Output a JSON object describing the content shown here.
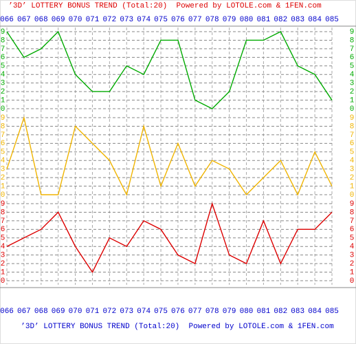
{
  "chart_data": {
    "type": "line",
    "title": "’3D’ LOTTERY BONUS TREND (Total:20)  Powered by LOTOLE.com & 1FEN.com",
    "categories": [
      "066",
      "067",
      "068",
      "069",
      "070",
      "071",
      "072",
      "073",
      "074",
      "075",
      "076",
      "077",
      "078",
      "079",
      "080",
      "081",
      "082",
      "083",
      "084",
      "085"
    ],
    "series": [
      {
        "color": "#00aa00",
        "values": [
          9,
          6,
          7,
          9,
          4,
          2,
          2,
          5,
          4,
          8,
          8,
          1,
          0,
          2,
          8,
          8,
          9,
          5,
          4,
          1
        ]
      },
      {
        "color": "#f0b400",
        "values": [
          3,
          9,
          0,
          0,
          8,
          6,
          4,
          0,
          8,
          1,
          6,
          1,
          4,
          3,
          0,
          2,
          4,
          0,
          5,
          1
        ]
      },
      {
        "color": "#dd0000",
        "values": [
          4,
          5,
          6,
          8,
          4,
          1,
          5,
          4,
          7,
          6,
          3,
          2,
          9,
          3,
          2,
          7,
          2,
          6,
          6,
          8
        ]
      }
    ],
    "ylim": [
      0,
      9
    ],
    "yticks": [
      0,
      1,
      2,
      3,
      4,
      5,
      6,
      7,
      8,
      9
    ],
    "grid": true
  }
}
